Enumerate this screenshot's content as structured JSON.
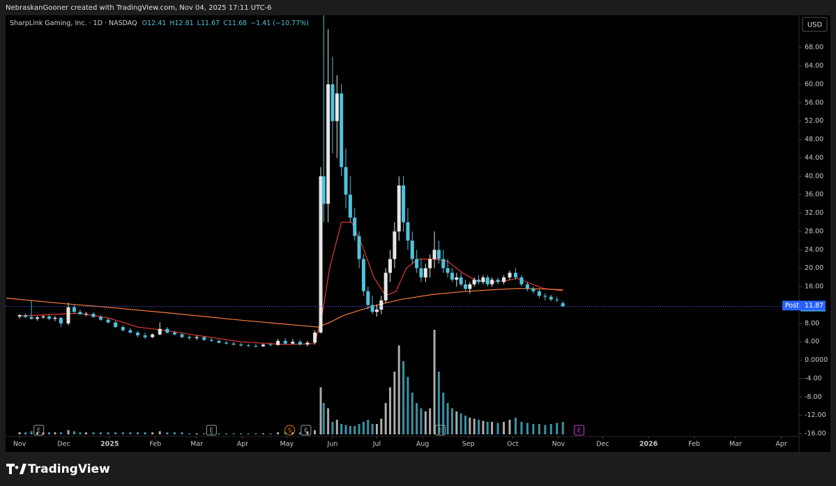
{
  "chart_data": {
    "type": "candlestick",
    "header": "NebraskanGooner created with TradingView.com, Nov 04, 2025 17:11 UTC-6",
    "legend": {
      "symbol": "SharpLink Gaming, Inc. · 1D · NASDAQ",
      "open": "O12.41",
      "high": "H12.81",
      "low": "L11.67",
      "close": "C11.68",
      "change": "−1.41 (−10.77%)"
    },
    "currency": "USD",
    "brand": "TradingView",
    "up_color": "#e6e6e6",
    "down_color": "#4fc3dc",
    "xlim": [
      -9.5,
      528
    ],
    "ylim": [
      -16.6,
      75
    ],
    "volume_ylim": [
      0,
      100
    ],
    "xticks": [
      {
        "value": 0,
        "label": "Nov"
      },
      {
        "value": 30,
        "label": "Dec"
      },
      {
        "value": 61,
        "label": "2025"
      },
      {
        "value": 92,
        "label": "Feb"
      },
      {
        "value": 120,
        "label": "Mar"
      },
      {
        "value": 151,
        "label": "Apr"
      },
      {
        "value": 181,
        "label": "May"
      },
      {
        "value": 212,
        "label": "Jun"
      },
      {
        "value": 242,
        "label": "Jul"
      },
      {
        "value": 273,
        "label": "Aug"
      },
      {
        "value": 304,
        "label": "Sep"
      },
      {
        "value": 334,
        "label": "Oct"
      },
      {
        "value": 365,
        "label": "Nov"
      },
      {
        "value": 395,
        "label": "Dec"
      },
      {
        "value": 426,
        "label": "2026"
      },
      {
        "value": 457,
        "label": "Feb"
      },
      {
        "value": 485,
        "label": "Mar"
      },
      {
        "value": 516,
        "label": "Apr"
      }
    ],
    "yticks": [
      {
        "value": 68,
        "label": "68.00"
      },
      {
        "value": 64,
        "label": "64.00"
      },
      {
        "value": 60,
        "label": "60.00"
      },
      {
        "value": 56,
        "label": "56.00"
      },
      {
        "value": 52,
        "label": "52.00"
      },
      {
        "value": 48,
        "label": "48.00"
      },
      {
        "value": 44,
        "label": "44.00"
      },
      {
        "value": 40,
        "label": "40.00"
      },
      {
        "value": 36,
        "label": "36.00"
      },
      {
        "value": 32,
        "label": "32.00"
      },
      {
        "value": 28,
        "label": "28.00"
      },
      {
        "value": 24,
        "label": "24.00"
      },
      {
        "value": 20,
        "label": "20.00"
      },
      {
        "value": 16,
        "label": "16.00"
      },
      {
        "value": 8,
        "label": "8.00"
      },
      {
        "value": 4,
        "label": "4.00"
      },
      {
        "value": 0,
        "label": "0.0000"
      },
      {
        "value": -4,
        "label": "-4.00"
      },
      {
        "value": -8,
        "label": "-8.00"
      },
      {
        "value": -12,
        "label": "-12.00"
      },
      {
        "value": -16,
        "label": "-16.00"
      }
    ],
    "last_price": {
      "value": 11.68,
      "label": "11.68"
    },
    "post_price": {
      "name": "Post",
      "value": 11.87,
      "label": "11.87"
    },
    "x": [
      0,
      4,
      8,
      12,
      16,
      20,
      24,
      28,
      33,
      37,
      41,
      45,
      50,
      55,
      60,
      65,
      70,
      75,
      80,
      85,
      90,
      95,
      100,
      105,
      110,
      115,
      120,
      125,
      130,
      135,
      140,
      145,
      150,
      155,
      160,
      165,
      170,
      175,
      180,
      185,
      190,
      195,
      200,
      204,
      206,
      209,
      212,
      215,
      218,
      221,
      224,
      227,
      230,
      233,
      236,
      239,
      242,
      245,
      248,
      251,
      254,
      257,
      260,
      263,
      266,
      269,
      272,
      275,
      278,
      281,
      284,
      287,
      290,
      293,
      296,
      299,
      302,
      305,
      308,
      311,
      314,
      317,
      320,
      324,
      328,
      332,
      336,
      340,
      344,
      348,
      352,
      356,
      360,
      364,
      368
    ],
    "ohlc": [
      [
        9.5,
        10,
        9,
        9.8
      ],
      [
        9.8,
        10.2,
        9.2,
        9.4
      ],
      [
        9.4,
        13,
        8.8,
        9.0
      ],
      [
        9.0,
        9.6,
        8.6,
        9.3
      ],
      [
        9.3,
        9.8,
        9.0,
        9.5
      ],
      [
        9.5,
        9.9,
        8.7,
        9.0
      ],
      [
        9.0,
        9.6,
        8.5,
        9.2
      ],
      [
        9.2,
        9.4,
        7.2,
        8.0
      ],
      [
        8.0,
        12.5,
        7.6,
        11.5
      ],
      [
        11.5,
        12,
        10.2,
        10.5
      ],
      [
        10.5,
        11,
        9.8,
        10
      ],
      [
        10,
        10.5,
        9.5,
        10.1
      ],
      [
        10.1,
        10.4,
        9.2,
        9.4
      ],
      [
        9.4,
        9.8,
        8.6,
        8.8
      ],
      [
        8.8,
        9.2,
        8,
        8.2
      ],
      [
        8.2,
        8.6,
        7,
        7.2
      ],
      [
        7.2,
        7.6,
        6.2,
        6.5
      ],
      [
        6.5,
        7,
        5.8,
        6
      ],
      [
        6,
        6.3,
        5,
        5.4
      ],
      [
        5.4,
        6,
        4.6,
        5
      ],
      [
        5,
        5.8,
        4.8,
        5.6
      ],
      [
        5.6,
        8.2,
        5.4,
        6.8
      ],
      [
        6.8,
        7.2,
        5.8,
        6
      ],
      [
        6,
        6.4,
        5.4,
        5.6
      ],
      [
        5.6,
        6,
        4.8,
        5
      ],
      [
        5,
        5.4,
        4.4,
        4.8
      ],
      [
        4.8,
        5.4,
        4.4,
        5
      ],
      [
        5,
        5.2,
        4.2,
        4.4
      ],
      [
        4.4,
        4.8,
        4,
        4.2
      ],
      [
        4.2,
        4.5,
        3.6,
        3.8
      ],
      [
        3.8,
        4.2,
        3.4,
        3.6
      ],
      [
        3.6,
        4,
        3.2,
        3.4
      ],
      [
        3.4,
        3.8,
        3,
        3.2
      ],
      [
        3.2,
        3.6,
        2.9,
        3.1
      ],
      [
        3.1,
        3.5,
        2.8,
        3
      ],
      [
        3,
        3.6,
        2.9,
        3.4
      ],
      [
        3.4,
        3.8,
        3.1,
        3.3
      ],
      [
        3.3,
        4.6,
        3.2,
        4.2
      ],
      [
        4.2,
        4.8,
        3.4,
        3.6
      ],
      [
        3.6,
        4.6,
        3.4,
        4
      ],
      [
        4,
        4.4,
        3.2,
        3.4
      ],
      [
        3.4,
        4.2,
        3,
        3.8
      ],
      [
        3.8,
        6.5,
        3.4,
        6
      ],
      [
        6,
        42,
        5.8,
        40
      ],
      [
        40,
        75,
        30,
        34
      ],
      [
        34,
        72,
        30,
        60
      ],
      [
        60,
        66,
        45,
        52
      ],
      [
        52,
        62,
        44,
        58
      ],
      [
        58,
        60,
        40,
        42
      ],
      [
        42,
        46,
        33,
        36
      ],
      [
        36,
        40,
        30,
        31
      ],
      [
        31,
        33,
        26,
        27
      ],
      [
        27,
        28,
        20,
        22
      ],
      [
        22,
        23,
        14,
        15
      ],
      [
        15,
        16,
        11,
        12
      ],
      [
        12,
        14,
        10,
        10.5
      ],
      [
        10.5,
        12,
        9.5,
        11
      ],
      [
        11,
        14,
        10,
        13
      ],
      [
        13,
        20,
        12.5,
        19
      ],
      [
        19,
        24,
        17,
        22
      ],
      [
        22,
        30,
        20,
        28
      ],
      [
        28,
        40,
        26,
        38
      ],
      [
        38,
        40,
        28,
        30
      ],
      [
        30,
        33,
        24,
        26
      ],
      [
        26,
        28,
        21,
        22
      ],
      [
        22,
        24,
        19,
        20
      ],
      [
        20,
        22,
        17,
        18
      ],
      [
        18,
        21,
        17,
        20
      ],
      [
        20,
        23,
        18,
        22
      ],
      [
        22,
        28,
        20,
        24
      ],
      [
        24,
        26,
        21,
        22
      ],
      [
        22,
        24,
        19,
        20
      ],
      [
        20,
        22,
        18,
        19
      ],
      [
        19,
        20,
        17,
        17.5
      ],
      [
        17.5,
        19,
        16,
        18
      ],
      [
        18,
        19,
        16,
        16.5
      ],
      [
        16.5,
        17.5,
        15,
        15.5
      ],
      [
        15.5,
        17,
        14.5,
        16.5
      ],
      [
        16.5,
        18,
        16,
        17.5
      ],
      [
        17.5,
        18.5,
        16.5,
        17
      ],
      [
        17,
        18.5,
        16.5,
        18
      ],
      [
        18,
        18.5,
        16,
        16.5
      ],
      [
        16.5,
        18,
        16,
        17.5
      ],
      [
        17.5,
        18,
        16.5,
        17
      ],
      [
        17,
        18.5,
        16.5,
        18
      ],
      [
        18,
        19.5,
        17.5,
        19
      ],
      [
        19,
        20,
        17.5,
        18
      ],
      [
        18,
        18.5,
        16,
        16.5
      ],
      [
        16.5,
        17,
        15,
        15.5
      ],
      [
        15.5,
        16,
        14.5,
        15
      ],
      [
        15,
        15.5,
        13.5,
        14
      ],
      [
        14,
        14.5,
        13,
        13.8
      ],
      [
        13.8,
        14.2,
        12.8,
        13.2
      ],
      [
        13.2,
        13.8,
        12.6,
        13.09
      ],
      [
        12.41,
        12.81,
        11.67,
        11.68
      ]
    ],
    "volume": [
      2,
      2,
      3,
      2,
      2,
      2,
      2,
      2,
      4,
      3,
      2,
      2,
      2,
      2,
      2,
      2,
      2,
      2,
      2,
      2,
      2,
      3,
      2,
      2,
      2,
      1,
      1,
      1,
      1,
      1,
      1,
      1,
      1,
      1,
      1,
      1,
      1,
      2,
      2,
      2,
      2,
      3,
      4,
      45,
      30,
      25,
      12,
      14,
      10,
      9,
      8,
      8,
      10,
      12,
      14,
      10,
      10,
      15,
      30,
      45,
      60,
      85,
      70,
      55,
      40,
      30,
      25,
      22,
      25,
      100,
      60,
      40,
      30,
      25,
      22,
      20,
      18,
      16,
      15,
      14,
      13,
      12,
      12,
      11,
      12,
      14,
      16,
      12,
      11,
      10,
      10,
      9,
      10,
      11,
      12
    ],
    "overlays": [
      {
        "color": "#e53935",
        "x": [
          0,
          40,
          60,
          80,
          100,
          120,
          150,
          180,
          200,
          205,
          210,
          218,
          225,
          232,
          240,
          248,
          255,
          262,
          270,
          280,
          290,
          300,
          310,
          320,
          330,
          337,
          345,
          355,
          368
        ],
        "values": [
          9.6,
          10.2,
          9.2,
          7.2,
          6.4,
          5.4,
          4,
          3.4,
          3.6,
          10,
          20,
          30,
          30,
          25,
          18,
          14,
          15,
          20,
          22,
          22,
          21.5,
          19,
          17.2,
          17,
          17.3,
          17.8,
          16.8,
          15.6,
          15.1
        ]
      },
      {
        "color": "#ff7b3a",
        "x": [
          -9,
          30,
          60,
          100,
          150,
          202,
          210,
          220,
          242,
          260,
          280,
          300,
          320,
          337,
          355,
          368
        ],
        "values": [
          13.5,
          12.3,
          11.5,
          10.3,
          8.7,
          7.2,
          8.2,
          9.8,
          12,
          13.3,
          14.3,
          14.9,
          15.3,
          15.6,
          15.5,
          15.3
        ]
      }
    ],
    "events": [
      {
        "x": 13,
        "label": "E",
        "color": "#9e9e9e"
      },
      {
        "x": 130,
        "label": "E",
        "color": "#9e9e9e"
      },
      {
        "x": 183,
        "label": "S",
        "color": "#f57c00"
      },
      {
        "x": 194,
        "label": "E",
        "color": "#9e9e9e"
      },
      {
        "x": 285,
        "label": "E",
        "color": "#9e9e9e"
      },
      {
        "x": 379,
        "label": "E",
        "color": "#c040e0"
      }
    ]
  }
}
